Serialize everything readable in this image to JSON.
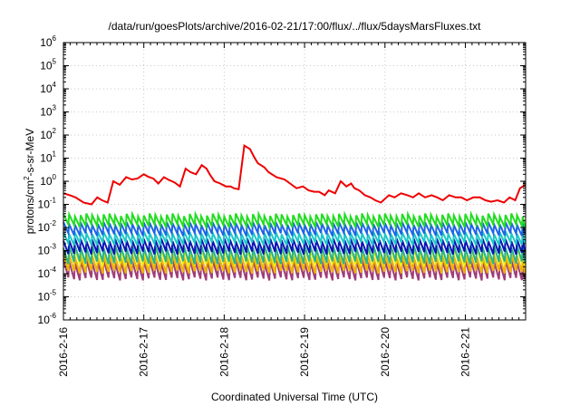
{
  "chart_data": {
    "type": "line",
    "title": "/data/run/goesPlots/archive/2016-02-21/17:00/flux/../flux/5daysMarsFluxes.txt",
    "xlabel": "Coordinated Universal Time (UTC)",
    "ylabel": "protons/cm2-s-sr-MeV",
    "ylabel_parts": [
      "protons/cm",
      "2",
      "-s-sr-MeV"
    ],
    "yscale": "log",
    "ylim": [
      1e-06,
      1000000.0
    ],
    "y_ticks": [
      {
        "base": "10",
        "exp": "-6",
        "value": 1e-06
      },
      {
        "base": "10",
        "exp": "-5",
        "value": 1e-05
      },
      {
        "base": "10",
        "exp": "-4",
        "value": 0.0001
      },
      {
        "base": "10",
        "exp": "-3",
        "value": 0.001
      },
      {
        "base": "10",
        "exp": "-2",
        "value": 0.01
      },
      {
        "base": "10",
        "exp": "-1",
        "value": 0.1
      },
      {
        "base": "10",
        "exp": "0",
        "value": 1
      },
      {
        "base": "10",
        "exp": "1",
        "value": 10
      },
      {
        "base": "10",
        "exp": "2",
        "value": 100
      },
      {
        "base": "10",
        "exp": "3",
        "value": 1000
      },
      {
        "base": "10",
        "exp": "4",
        "value": 10000
      },
      {
        "base": "10",
        "exp": "5",
        "value": 100000
      },
      {
        "base": "10",
        "exp": "6",
        "value": 1000000
      }
    ],
    "x_ticks": [
      "2016-2-16",
      "2016-2-17",
      "2016-2-18",
      "2016-2-19",
      "2016-2-20",
      "2016-2-21"
    ],
    "xlim_days": [
      0,
      5.75
    ],
    "grid": true,
    "series_style": [
      {
        "color": "#ee0000",
        "role": "top"
      },
      {
        "color": "#22dd22",
        "role": "band"
      },
      {
        "color": "#1e64e6",
        "role": "band"
      },
      {
        "color": "#1ec8c8",
        "role": "band"
      },
      {
        "color": "#0a14b4",
        "role": "band"
      },
      {
        "color": "#28b48c",
        "role": "band"
      },
      {
        "color": "#eeee00",
        "role": "band"
      },
      {
        "color": "#f0b400",
        "role": "band"
      },
      {
        "color": "#a03c78",
        "role": "band"
      }
    ],
    "red_series": {
      "x_days": [
        0.0,
        0.08,
        0.15,
        0.25,
        0.35,
        0.42,
        0.48,
        0.55,
        0.62,
        0.7,
        0.78,
        0.85,
        0.92,
        1.0,
        1.05,
        1.12,
        1.18,
        1.25,
        1.3,
        1.38,
        1.45,
        1.52,
        1.58,
        1.65,
        1.72,
        1.78,
        1.82,
        1.88,
        1.95,
        2.02,
        2.08,
        2.12,
        2.18,
        2.25,
        2.32,
        2.38,
        2.42,
        2.5,
        2.55,
        2.65,
        2.75,
        2.82,
        2.9,
        2.98,
        3.05,
        3.12,
        3.18,
        3.25,
        3.3,
        3.38,
        3.45,
        3.52,
        3.58,
        3.62,
        3.68,
        3.75,
        3.82,
        3.88,
        3.95,
        4.05,
        4.12,
        4.2,
        4.28,
        4.35,
        4.42,
        4.5,
        4.58,
        4.65,
        4.72,
        4.8,
        4.88,
        4.95,
        5.02,
        5.1,
        5.18,
        5.25,
        5.32,
        5.4,
        5.48,
        5.55,
        5.62,
        5.68,
        5.75
      ],
      "values": [
        0.3,
        0.25,
        0.2,
        0.12,
        0.1,
        0.2,
        0.15,
        0.12,
        1.0,
        0.7,
        1.5,
        1.2,
        1.3,
        2.0,
        1.6,
        1.3,
        0.8,
        1.5,
        1.2,
        0.9,
        0.6,
        3.5,
        2.5,
        2.0,
        5.0,
        3.5,
        2.0,
        1.0,
        0.8,
        0.6,
        0.6,
        0.5,
        0.45,
        35.0,
        25.0,
        10.0,
        6.0,
        4.0,
        2.5,
        1.5,
        1.2,
        0.8,
        0.5,
        0.6,
        0.4,
        0.35,
        0.35,
        0.25,
        0.4,
        0.3,
        1.0,
        0.6,
        0.8,
        0.5,
        0.4,
        0.25,
        0.2,
        0.15,
        0.12,
        0.25,
        0.2,
        0.3,
        0.25,
        0.2,
        0.3,
        0.2,
        0.25,
        0.2,
        0.15,
        0.25,
        0.2,
        0.2,
        0.15,
        0.2,
        0.2,
        0.15,
        0.13,
        0.15,
        0.12,
        0.2,
        0.15,
        0.5,
        0.7
      ]
    },
    "band_series": {
      "spikes_per_day": 14,
      "peak_values": [
        0.035,
        0.015,
        0.006,
        0.003,
        0.0015,
        0.0012,
        0.0006,
        0.00035,
        0.0001
      ],
      "trough_values": [
        0.012,
        0.005,
        0.002,
        0.0008,
        0.0003,
        0.00025,
        0.00012,
        6e-05,
        2e-05
      ]
    }
  }
}
